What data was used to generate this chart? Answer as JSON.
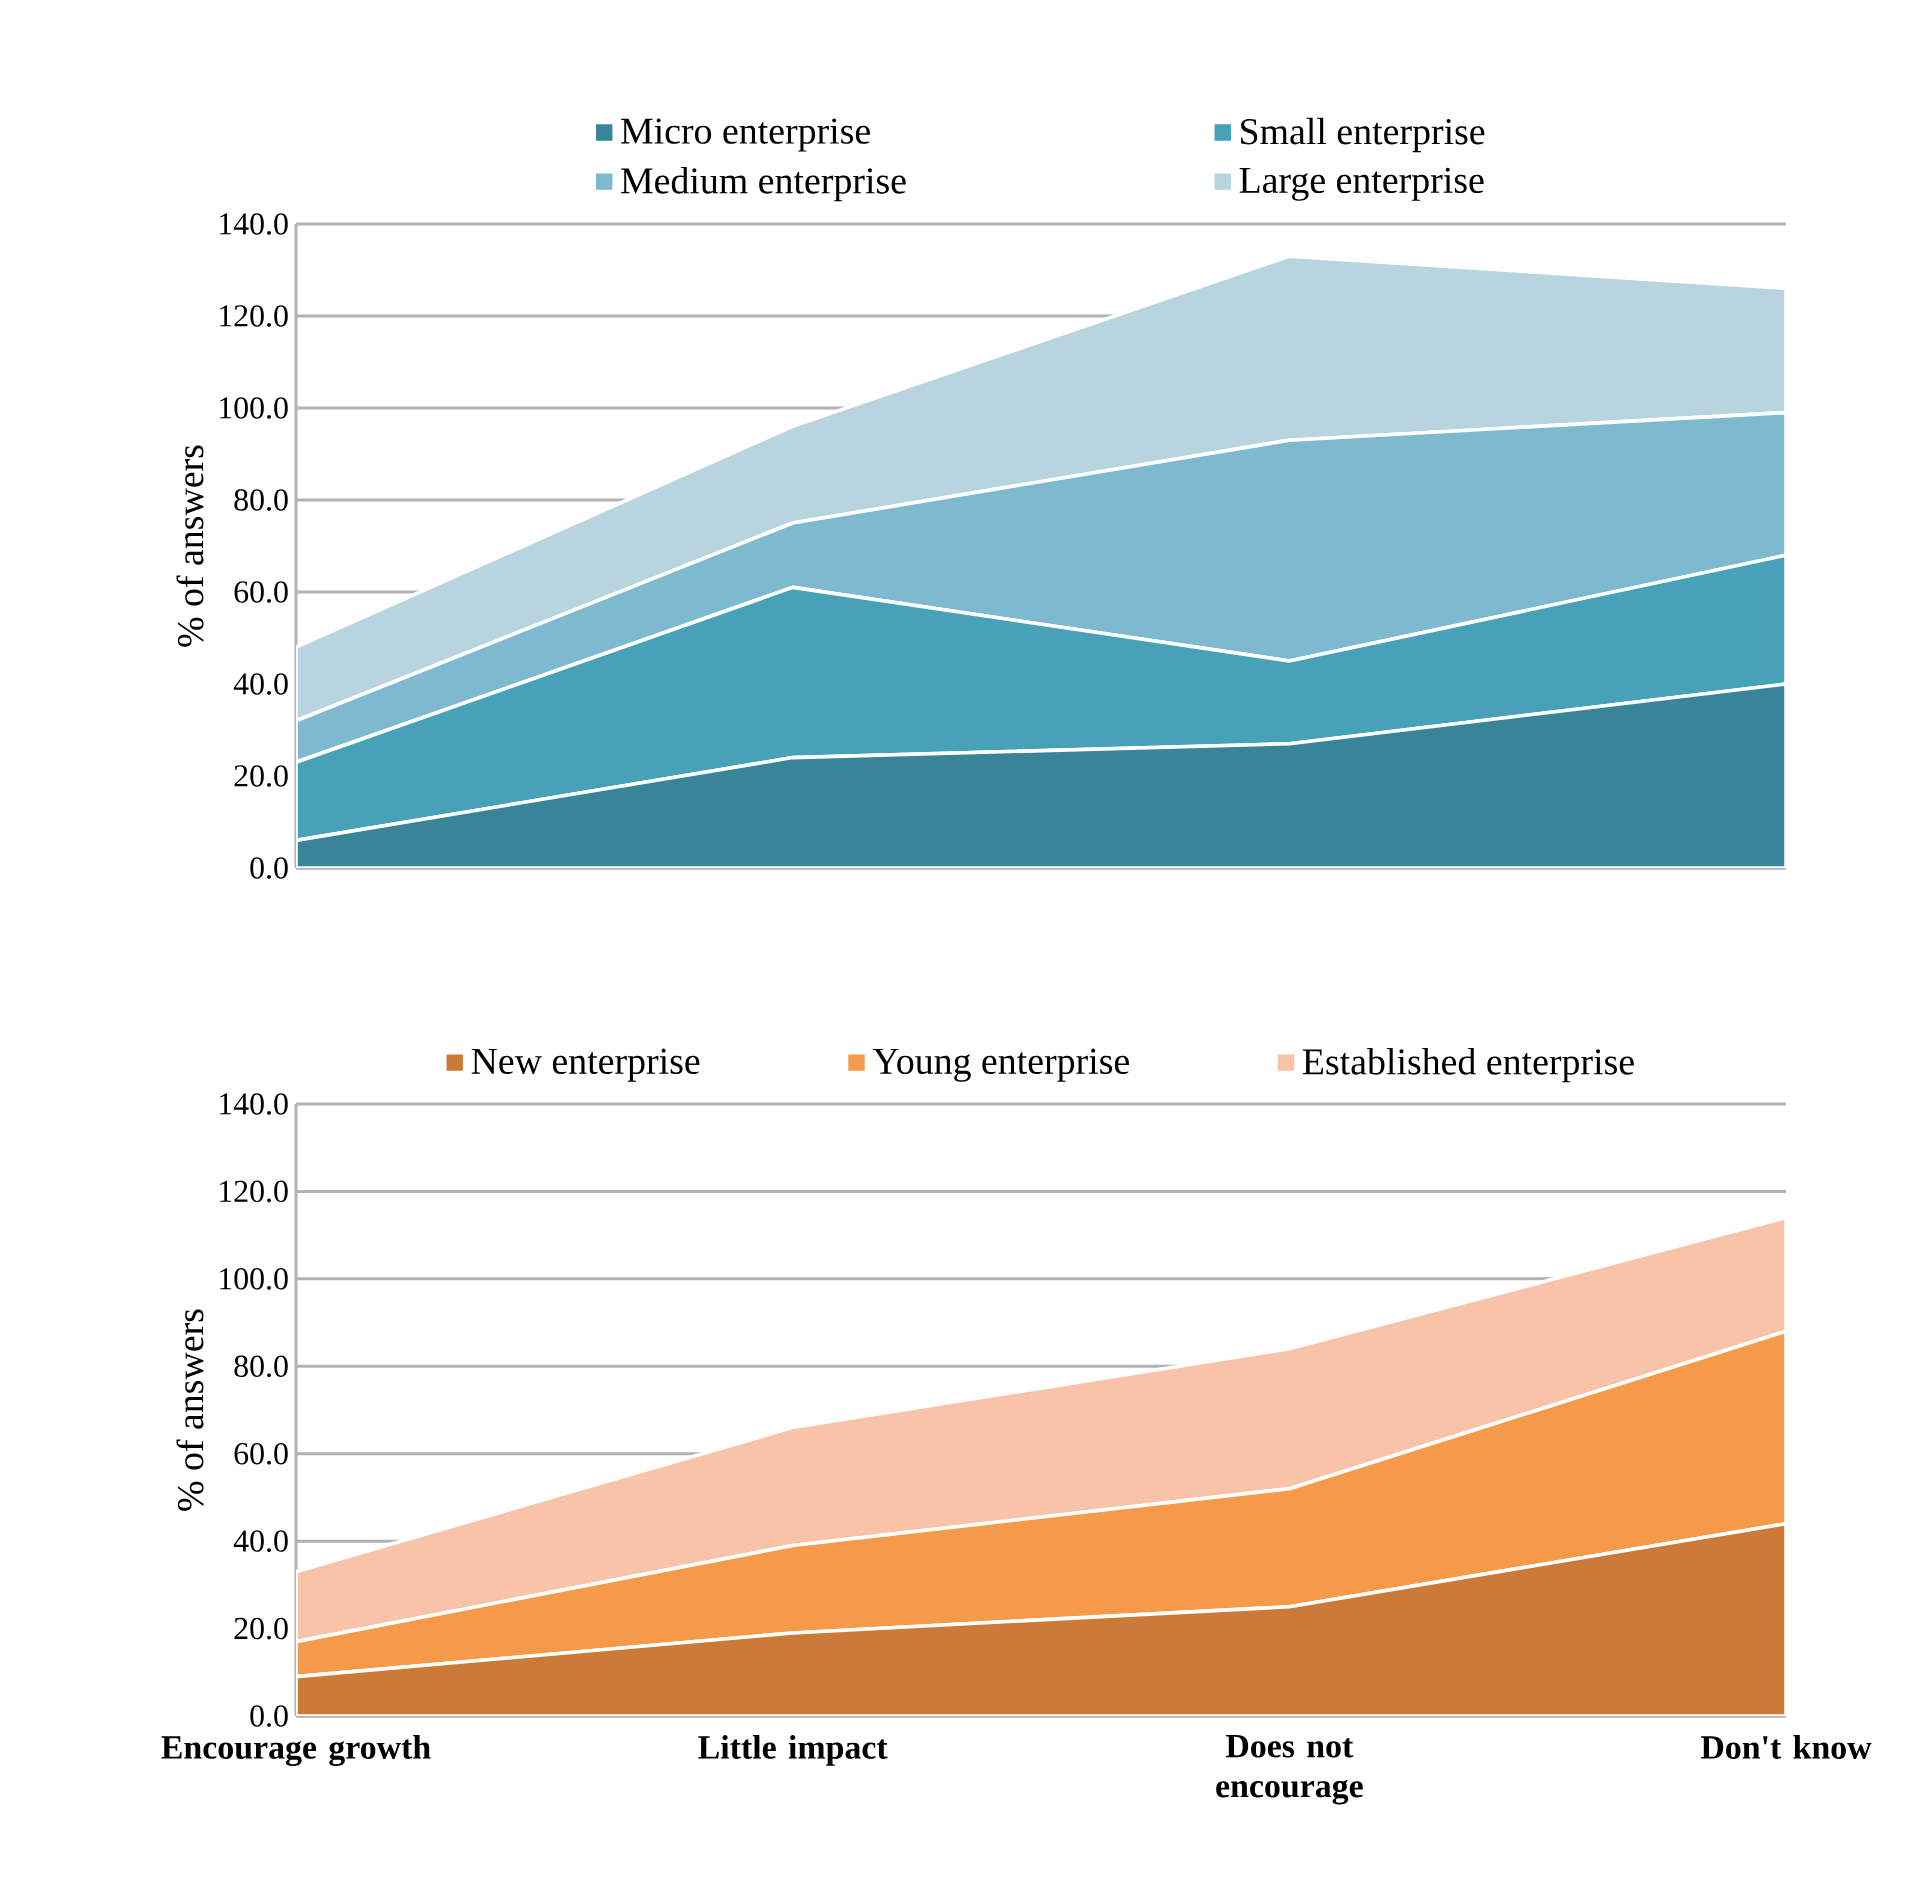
{
  "chart_data": [
    {
      "type": "area",
      "stacked": true,
      "ylabel": "% of answers",
      "legend": "top",
      "grid": "y",
      "tick_labels": "y",
      "categories": [
        null,
        null,
        null,
        null
      ],
      "ylim": [
        0,
        140
      ],
      "yticks": [
        {
          "value": 0,
          "label": "0.0"
        },
        {
          "value": 20,
          "label": "20.0"
        },
        {
          "value": 40,
          "label": "40.0"
        },
        {
          "value": 60,
          "label": "60.0"
        },
        {
          "value": 80,
          "label": "80.0"
        },
        {
          "value": 100,
          "label": "100.0"
        },
        {
          "value": 120,
          "label": "120.0"
        },
        {
          "value": 140,
          "label": "140.0"
        }
      ],
      "series": [
        {
          "name": "Micro enterprise",
          "color": "#3a8499",
          "values": [
            6,
            24,
            27,
            40
          ]
        },
        {
          "name": "Small enterprise",
          "color": "#47a1b8",
          "values": [
            17,
            37,
            18,
            28
          ]
        },
        {
          "name": "Medium enterprise",
          "color": "#7ebacf",
          "values": [
            9,
            14,
            48,
            31
          ]
        },
        {
          "name": "Large enterprise",
          "color": "#b8d5df",
          "values": [
            16,
            21,
            40,
            27
          ]
        }
      ]
    },
    {
      "type": "area",
      "stacked": true,
      "ylabel": "% of answers",
      "legend": "top",
      "grid": "y",
      "categories": [
        "Encourage growth",
        "Little impact",
        "Does not encourage",
        "Don't know"
      ],
      "ylim": [
        0,
        140
      ],
      "yticks": [
        {
          "value": 0,
          "label": "0.0"
        },
        {
          "value": 20,
          "label": "20.0"
        },
        {
          "value": 40,
          "label": "40.0"
        },
        {
          "value": 60,
          "label": "60.0"
        },
        {
          "value": 80,
          "label": "80.0"
        },
        {
          "value": 100,
          "label": "100.0"
        },
        {
          "value": 120,
          "label": "120.0"
        },
        {
          "value": 140,
          "label": "140.0"
        }
      ],
      "series": [
        {
          "name": "New enterprise",
          "color": "#cc7a38",
          "values": [
            9,
            19,
            25,
            44
          ]
        },
        {
          "name": "Young enterprise",
          "color": "#f59a48",
          "values": [
            8,
            20,
            27,
            44
          ]
        },
        {
          "name": "Established enterprise",
          "color": "#f8c3a8",
          "values": [
            16,
            27,
            32,
            26
          ]
        }
      ]
    }
  ]
}
